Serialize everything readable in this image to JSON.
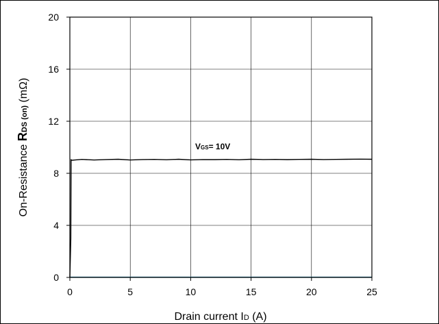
{
  "chart_data": {
    "type": "line",
    "xlabel": {
      "prefix": "Drain current I",
      "sub": "D",
      "suffix": " (A)"
    },
    "ylabel": {
      "prefix": "On-Resistance ",
      "symbol": "R",
      "sub": "DS (on)",
      "suffix": " (mΩ)"
    },
    "xlim": [
      0,
      25
    ],
    "ylim": [
      0,
      20
    ],
    "xticks": [
      0,
      5,
      10,
      15,
      20,
      25
    ],
    "yticks": [
      0,
      4,
      8,
      12,
      16,
      20
    ],
    "grid": true,
    "series": [
      {
        "name": "VGS = 10V",
        "label": {
          "symbol": "V",
          "sub": "GS",
          "suffix": "= 10V"
        },
        "color": "#000000",
        "x": [
          0,
          0.08,
          0.1,
          0.12,
          0.5,
          1,
          2,
          3,
          4,
          5,
          6,
          7,
          8,
          9,
          10,
          11,
          12,
          13,
          14,
          15,
          16,
          17,
          18,
          19,
          20,
          21,
          22,
          23,
          24,
          25
        ],
        "y": [
          0,
          3.0,
          9.05,
          9.0,
          9.03,
          9.07,
          9.02,
          9.06,
          9.08,
          9.02,
          9.06,
          9.07,
          9.04,
          9.08,
          9.03,
          9.06,
          9.05,
          9.07,
          9.04,
          9.08,
          9.06,
          9.07,
          9.05,
          9.07,
          9.08,
          9.06,
          9.07,
          9.08,
          9.09,
          9.08
        ]
      }
    ],
    "baseline": {
      "color": "#1f7a9b",
      "x": [
        0,
        25
      ],
      "y": [
        0.02,
        0.02
      ]
    }
  }
}
